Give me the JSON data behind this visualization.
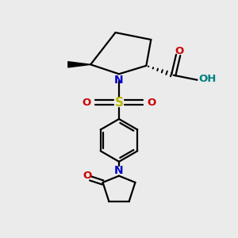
{
  "bg_color": "#ebebeb",
  "bond_color": "#000000",
  "N_color": "#0000cc",
  "O_color": "#cc0000",
  "S_color": "#b8b800",
  "OH_color": "#008080",
  "figsize": [
    3.0,
    3.0
  ],
  "dpi": 100,
  "xlim": [
    0,
    10
  ],
  "ylim": [
    0,
    10
  ]
}
